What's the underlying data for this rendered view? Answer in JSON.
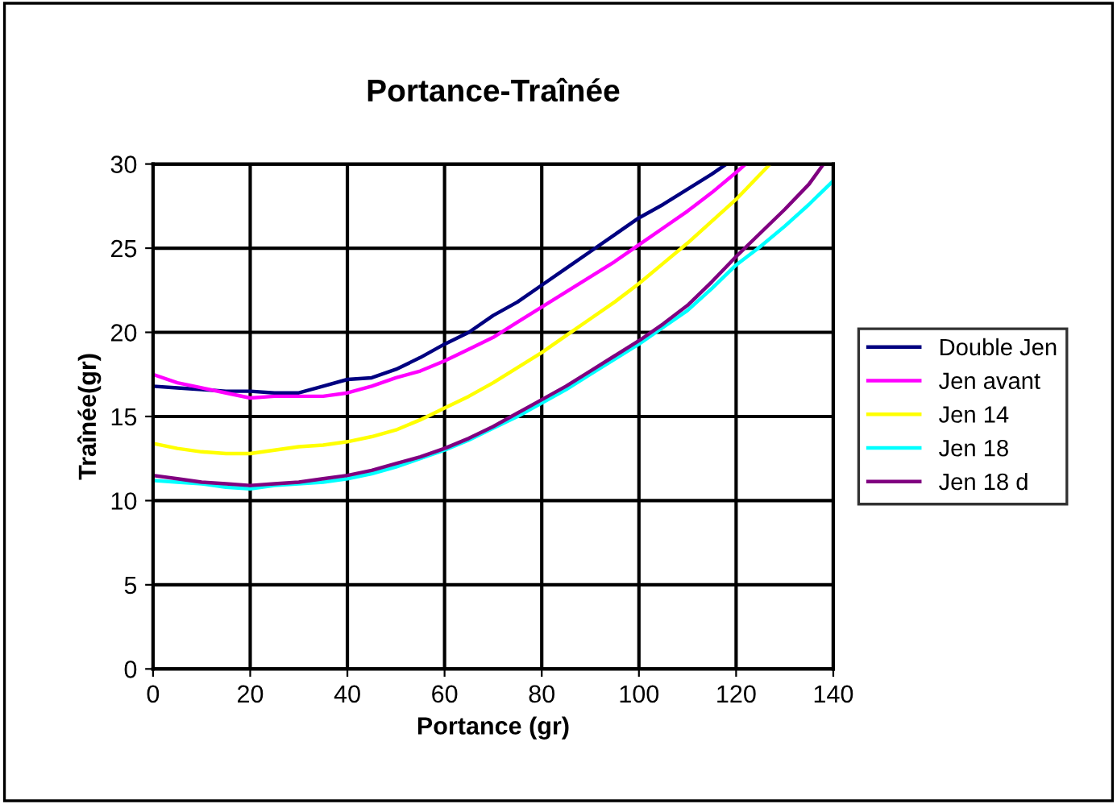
{
  "chart_data": {
    "type": "line",
    "title": "Portance-Traînée",
    "xlabel": "Portance (gr)",
    "ylabel": "Traînée(gr)",
    "xlim": [
      0,
      140
    ],
    "ylim": [
      0,
      30
    ],
    "xticks": [
      0,
      20,
      40,
      60,
      80,
      100,
      120,
      140
    ],
    "yticks": [
      0,
      5,
      10,
      15,
      20,
      25,
      30
    ],
    "grid": true,
    "legend": "right",
    "marker": "none",
    "line_style": "solid",
    "series": [
      {
        "name": "Double Jen",
        "color": "#000080",
        "x": [
          0,
          5,
          10,
          15,
          20,
          25,
          30,
          35,
          40,
          45,
          50,
          55,
          60,
          65,
          70,
          75,
          80,
          85,
          90,
          95,
          100,
          105,
          110,
          115,
          118
        ],
        "values": [
          16.8,
          16.7,
          16.6,
          16.5,
          16.5,
          16.4,
          16.4,
          16.8,
          17.2,
          17.3,
          17.8,
          18.5,
          19.3,
          20.0,
          21.0,
          21.8,
          22.8,
          23.8,
          24.8,
          25.8,
          26.8,
          27.6,
          28.5,
          29.4,
          30
        ]
      },
      {
        "name": "Jen avant",
        "color": "#ff00ff",
        "x": [
          0,
          5,
          10,
          15,
          20,
          25,
          30,
          35,
          40,
          45,
          50,
          55,
          60,
          65,
          70,
          75,
          80,
          85,
          90,
          95,
          100,
          105,
          110,
          115,
          120,
          122
        ],
        "values": [
          17.5,
          17.0,
          16.7,
          16.4,
          16.1,
          16.2,
          16.2,
          16.2,
          16.4,
          16.8,
          17.3,
          17.7,
          18.3,
          19.0,
          19.7,
          20.6,
          21.5,
          22.4,
          23.3,
          24.2,
          25.2,
          26.2,
          27.2,
          28.3,
          29.5,
          30
        ]
      },
      {
        "name": "Jen 14",
        "color": "#ffff00",
        "x": [
          0,
          5,
          10,
          15,
          20,
          25,
          30,
          35,
          40,
          45,
          50,
          55,
          60,
          65,
          70,
          75,
          80,
          85,
          90,
          95,
          100,
          105,
          110,
          115,
          120,
          127
        ],
        "values": [
          13.4,
          13.1,
          12.9,
          12.8,
          12.8,
          13.0,
          13.2,
          13.3,
          13.5,
          13.8,
          14.2,
          14.8,
          15.5,
          16.2,
          17.0,
          17.9,
          18.8,
          19.8,
          20.8,
          21.8,
          22.9,
          24.1,
          25.3,
          26.6,
          27.9,
          30
        ]
      },
      {
        "name": "Jen 18",
        "color": "#00ffff",
        "x": [
          0,
          5,
          10,
          15,
          20,
          25,
          30,
          35,
          40,
          45,
          50,
          55,
          60,
          65,
          70,
          75,
          80,
          85,
          90,
          95,
          100,
          105,
          110,
          115,
          120,
          125,
          130,
          135,
          140
        ],
        "values": [
          11.2,
          11.1,
          11.0,
          10.8,
          10.7,
          10.9,
          11.0,
          11.1,
          11.3,
          11.6,
          12.0,
          12.5,
          13.0,
          13.6,
          14.3,
          15.0,
          15.8,
          16.6,
          17.5,
          18.4,
          19.3,
          20.3,
          21.3,
          22.6,
          24.0,
          25.1,
          26.3,
          27.6,
          29.0
        ]
      },
      {
        "name": "Jen 18 d",
        "color": "#800080",
        "x": [
          0,
          5,
          10,
          15,
          20,
          25,
          30,
          35,
          40,
          45,
          50,
          55,
          60,
          65,
          70,
          75,
          80,
          85,
          90,
          95,
          100,
          105,
          110,
          115,
          120,
          125,
          130,
          135,
          138
        ],
        "values": [
          11.5,
          11.3,
          11.1,
          11.0,
          10.9,
          11.0,
          11.1,
          11.3,
          11.5,
          11.8,
          12.2,
          12.6,
          13.1,
          13.7,
          14.4,
          15.2,
          16.0,
          16.8,
          17.7,
          18.6,
          19.5,
          20.5,
          21.6,
          23.0,
          24.5,
          25.9,
          27.3,
          28.8,
          30
        ]
      }
    ]
  }
}
